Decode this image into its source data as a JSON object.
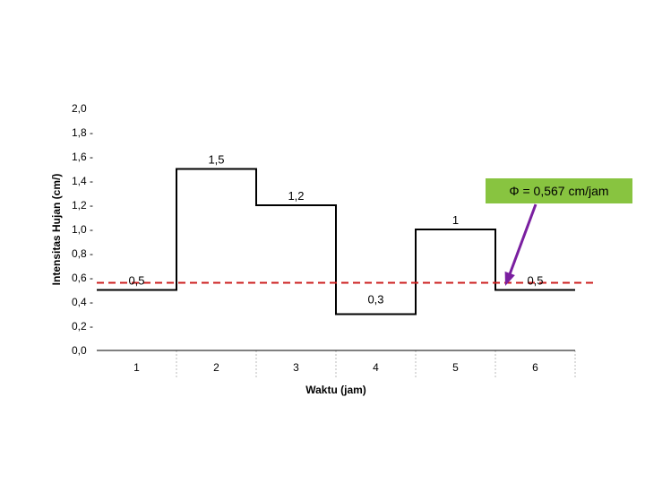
{
  "chart_data": {
    "type": "line",
    "step": true,
    "xlabel": "Waktu (jam)",
    "ylabel": "Intensitas Hujan (cm/)",
    "categories": [
      "1",
      "2",
      "3",
      "4",
      "5",
      "6"
    ],
    "values": [
      0.5,
      1.5,
      1.2,
      0.3,
      1,
      0.5
    ],
    "data_labels": [
      "0,5",
      "1,5",
      "1,2",
      "0,3",
      "1",
      "0,5"
    ],
    "ylim": [
      0,
      2
    ],
    "yticks": [
      "0,0",
      "0,2",
      "0,4",
      "0,6",
      "0,8",
      "1,0",
      "1,2",
      "1,4",
      "1,6",
      "1,8",
      "2,0"
    ],
    "phi_line": {
      "value": 0.567,
      "color": "#cc1f1f"
    },
    "annotation": {
      "text": "Φ = 0,567 cm/jam",
      "box_color": "#88c440",
      "arrow_color": "#7a1fa0"
    },
    "series_color": "#000000",
    "grid": false
  }
}
